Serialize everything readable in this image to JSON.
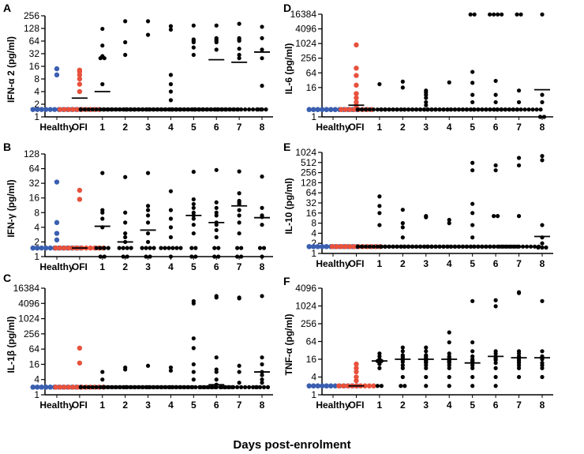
{
  "chart_data": [
    {
      "panel": "A",
      "type": "scatter",
      "title": "",
      "ylabel": "IFN-α 2 (pg/ml)",
      "yscale": "log2",
      "ylim": [
        1,
        256
      ],
      "yticks": [
        1,
        2,
        4,
        8,
        16,
        32,
        64,
        128,
        256
      ],
      "categories": [
        "Healthy",
        "OFI",
        "1",
        "2",
        "3",
        "4",
        "5",
        "6",
        "7",
        "8"
      ],
      "colors": [
        "#3a5fb0",
        "#e8513c",
        "#000000",
        "#000000",
        "#000000",
        "#000000",
        "#000000",
        "#000000",
        "#000000",
        "#000000"
      ],
      "points": [
        [
          1.5,
          1.5,
          1.5,
          1.5,
          1.5,
          1.5,
          1.5,
          1.5,
          1.5,
          1.5,
          1.5,
          1.5,
          1.5,
          1.5,
          1.5,
          10,
          14
        ],
        [
          1.5,
          1.5,
          1.5,
          1.5,
          1.5,
          1.5,
          1.5,
          1.5,
          1.5,
          1.5,
          4,
          6,
          8,
          10,
          12,
          13
        ],
        [
          1.5,
          1.5,
          1.5,
          1.5,
          1.5,
          1.5,
          1.5,
          1.5,
          1.5,
          1.5,
          1.5,
          1.5,
          6,
          25,
          25,
          28,
          50,
          125
        ],
        [
          1.5,
          1.5,
          1.5,
          1.5,
          1.5,
          1.5,
          1.5,
          1.5,
          1.5,
          1.5,
          1.5,
          1.5,
          1.5,
          1.5,
          1.5,
          30,
          60,
          190
        ],
        [
          1.5,
          1.5,
          1.5,
          1.5,
          1.5,
          1.5,
          1.5,
          1.5,
          1.5,
          1.5,
          1.5,
          1.5,
          1.5,
          1.5,
          1.5,
          90,
          190
        ],
        [
          1.5,
          1.5,
          1.5,
          1.5,
          1.5,
          1.5,
          1.5,
          1.5,
          1.5,
          1.5,
          1.5,
          1.5,
          2.5,
          4,
          6,
          10,
          120,
          145
        ],
        [
          1.5,
          1.5,
          1.5,
          1.5,
          1.5,
          1.5,
          1.5,
          1.5,
          1.5,
          1.5,
          1.5,
          1.5,
          1.5,
          1.5,
          1.5,
          30,
          45,
          60,
          65,
          70,
          150
        ],
        [
          1.5,
          1.5,
          1.5,
          1.5,
          1.5,
          1.5,
          1.5,
          1.5,
          1.5,
          1.5,
          1.5,
          1.5,
          1.5,
          1.5,
          1.5,
          40,
          60,
          65,
          70,
          75,
          150
        ],
        [
          1.5,
          1.5,
          1.5,
          1.5,
          1.5,
          1.5,
          1.5,
          1.5,
          1.5,
          1.5,
          1.5,
          1.5,
          1.5,
          1.5,
          1.5,
          25,
          30,
          42,
          65,
          70,
          75,
          165
        ],
        [
          1.5,
          1.5,
          1.5,
          5.5,
          25,
          40,
          75,
          140
        ]
      ],
      "medians": [
        null,
        2.8,
        4.0,
        null,
        null,
        null,
        null,
        23,
        20,
        35
      ]
    },
    {
      "panel": "B",
      "type": "scatter",
      "title": "",
      "ylabel": "IFN-γ (pg/ml)",
      "yscale": "log2",
      "ylim": [
        1,
        128
      ],
      "yticks": [
        1,
        2,
        4,
        8,
        16,
        32,
        64,
        128
      ],
      "categories": [
        "Healthy",
        "OFI",
        "1",
        "2",
        "3",
        "4",
        "5",
        "6",
        "7",
        "8"
      ],
      "colors": [
        "#3a5fb0",
        "#e8513c",
        "#000000",
        "#000000",
        "#000000",
        "#000000",
        "#000000",
        "#000000",
        "#000000",
        "#000000"
      ],
      "points": [
        [
          1.5,
          1.5,
          1.5,
          1.5,
          1.5,
          1.5,
          1.5,
          1.5,
          1.5,
          1.5,
          1.5,
          1.5,
          1.5,
          1.5,
          2.2,
          3,
          5,
          34
        ],
        [
          1.5,
          1.5,
          1.5,
          1.5,
          1.5,
          1.5,
          1.5,
          1.5,
          1.5,
          1.5,
          1.5,
          1.5,
          1.5,
          15,
          23
        ],
        [
          1,
          1,
          1.5,
          1.5,
          1.5,
          1.5,
          4,
          6,
          8,
          9,
          52
        ],
        [
          1,
          1,
          1.5,
          1.5,
          1.5,
          1.5,
          2,
          2.5,
          3,
          5,
          8,
          43
        ],
        [
          1,
          1,
          1.5,
          1.5,
          1.5,
          1.5,
          2,
          3,
          5,
          7,
          9,
          11,
          52
        ],
        [
          1,
          1.5,
          1.5,
          1.5,
          1.5,
          1.5,
          1.5,
          2.5,
          4,
          6,
          9,
          22
        ],
        [
          1,
          1,
          1.5,
          1.5,
          3,
          4.5,
          6,
          7,
          8,
          10,
          12,
          15,
          55
        ],
        [
          1,
          1,
          1.5,
          1.5,
          2.5,
          3.5,
          4.5,
          5,
          7,
          8,
          10,
          13,
          60
        ],
        [
          1,
          1,
          1.5,
          1.5,
          3,
          5,
          7,
          9,
          12,
          13,
          14,
          20,
          56
        ],
        [
          1,
          1.5,
          1.5,
          4.5,
          6.5,
          7,
          10,
          44
        ]
      ],
      "medians": [
        null,
        1.5,
        4.2,
        2.0,
        3.5,
        1.5,
        7.0,
        5.0,
        11,
        6.3
      ]
    },
    {
      "panel": "C",
      "type": "scatter",
      "title": "",
      "ylabel": "IL-1β (pg/ml)",
      "yscale": "log4",
      "ylim": [
        1,
        16384
      ],
      "yticks": [
        1,
        4,
        16,
        64,
        256,
        1024,
        4096,
        16384
      ],
      "categories": [
        "Healthy",
        "OFI",
        "1",
        "2",
        "3",
        "4",
        "5",
        "6",
        "7",
        "8"
      ],
      "colors": [
        "#3a5fb0",
        "#e8513c",
        "#000000",
        "#000000",
        "#000000",
        "#000000",
        "#000000",
        "#000000",
        "#000000",
        "#000000"
      ],
      "points": [
        [
          2,
          2,
          2,
          2,
          2,
          2,
          2,
          2,
          2,
          2,
          2,
          2,
          2,
          2,
          2,
          2,
          2,
          2
        ],
        [
          2,
          2,
          2,
          2,
          2,
          2,
          2,
          2,
          2,
          2,
          2,
          2,
          2,
          18,
          70
        ],
        [
          2,
          2,
          2,
          2,
          2,
          2,
          2,
          2,
          2,
          2,
          2,
          2,
          4,
          8
        ],
        [
          2,
          2,
          2,
          2,
          2,
          2,
          2,
          2,
          2,
          2,
          2,
          2,
          2,
          10,
          12
        ],
        [
          2,
          2,
          2,
          2,
          2,
          2,
          2,
          2,
          2,
          2,
          2,
          2,
          2,
          14
        ],
        [
          2,
          2,
          2,
          2,
          2,
          2,
          2,
          2,
          2,
          2,
          2,
          2,
          9,
          12
        ],
        [
          2,
          2,
          2,
          2,
          2,
          2,
          2,
          2,
          2,
          2,
          2,
          2,
          4,
          8,
          16,
          70,
          170,
          4096,
          5000
        ],
        [
          2,
          2,
          2,
          2,
          2,
          2,
          2,
          2,
          2,
          2.5,
          4,
          8,
          10,
          30,
          7000,
          8000
        ],
        [
          2,
          2,
          2,
          2,
          2,
          2,
          2,
          2,
          2,
          2,
          3,
          8,
          14,
          6500,
          7000
        ],
        [
          2,
          2,
          2,
          2,
          3,
          4,
          6,
          8,
          16,
          30,
          8000
        ]
      ],
      "medians": [
        null,
        null,
        null,
        null,
        null,
        null,
        null,
        2.5,
        null,
        8
      ]
    },
    {
      "panel": "D",
      "type": "scatter",
      "title": "",
      "ylabel": "IL-6 (pg/ml)",
      "yscale": "log4",
      "ylim": [
        1,
        16384
      ],
      "yticks": [
        1,
        16,
        64,
        256,
        1024,
        4096,
        16384
      ],
      "categories": [
        "Healthy",
        "OFI",
        "1",
        "2",
        "3",
        "4",
        "5",
        "6",
        "7",
        "8"
      ],
      "colors": [
        "#3a5fb0",
        "#e8513c",
        "#000000",
        "#000000",
        "#000000",
        "#000000",
        "#000000",
        "#000000",
        "#000000",
        "#000000"
      ],
      "points": [
        [
          2,
          2,
          2,
          2,
          2,
          2,
          2,
          2,
          2,
          2,
          2,
          2,
          2,
          2,
          2,
          2,
          2,
          2,
          2
        ],
        [
          2,
          2,
          2,
          2,
          2,
          2,
          2,
          2,
          3,
          4,
          6,
          9,
          20,
          50,
          100,
          900
        ],
        [
          2,
          2,
          2,
          2,
          2,
          2,
          2,
          2,
          2,
          2,
          2,
          2,
          2,
          2,
          2,
          22
        ],
        [
          2,
          2,
          2,
          2,
          2,
          2,
          2,
          2,
          2,
          2,
          2,
          2,
          2,
          2,
          16,
          28
        ],
        [
          2,
          2,
          2,
          2,
          2,
          2,
          2,
          2,
          2,
          2,
          2,
          2,
          3,
          4,
          6,
          8,
          10,
          12
        ],
        [
          2,
          2,
          2,
          2,
          2,
          2,
          2,
          2,
          2,
          2,
          2,
          2,
          2,
          2,
          2,
          26
        ],
        [
          2,
          2,
          2,
          2,
          2,
          2,
          2,
          2,
          2,
          2,
          2,
          2,
          4,
          8,
          25,
          70,
          16000,
          16000
        ],
        [
          2,
          2,
          2,
          2,
          2,
          2,
          2,
          2,
          2,
          2,
          2,
          2,
          2,
          4,
          8,
          30,
          16000,
          16000,
          16000,
          16000
        ],
        [
          2,
          2,
          2,
          2,
          2,
          2,
          2,
          2,
          2,
          2,
          2,
          2,
          2,
          2,
          4,
          12,
          16000,
          16000
        ],
        [
          1,
          1,
          4,
          8,
          16000
        ]
      ],
      "medians": [
        null,
        3,
        null,
        null,
        null,
        null,
        null,
        null,
        null,
        13
      ]
    },
    {
      "panel": "E",
      "type": "scatter",
      "title": "",
      "ylabel": "IL-10 (pg/ml)",
      "yscale": "log2",
      "ylim": [
        1,
        1024
      ],
      "yticks": [
        1,
        2,
        4,
        8,
        16,
        32,
        64,
        128,
        256,
        512,
        1024
      ],
      "categories": [
        "Healthy",
        "OFI",
        "1",
        "2",
        "3",
        "4",
        "5",
        "6",
        "7",
        "8"
      ],
      "colors": [
        "#3a5fb0",
        "#e8513c",
        "#000000",
        "#000000",
        "#000000",
        "#000000",
        "#000000",
        "#000000",
        "#000000",
        "#000000"
      ],
      "points": [
        [
          1.6,
          1.6,
          1.6,
          1.6,
          1.6,
          1.6,
          1.6,
          1.6,
          1.6,
          1.6,
          1.6,
          1.6,
          1.6,
          1.6,
          1.6,
          1.6,
          1.6
        ],
        [
          1.6,
          1.6,
          1.6,
          1.6,
          1.6,
          1.6,
          1.6,
          1.6,
          1.6,
          1.6,
          1.6,
          1.6,
          1.6,
          1.6,
          1.6,
          1.6
        ],
        [
          1.6,
          1.6,
          1.6,
          1.6,
          1.6,
          1.6,
          1.6,
          1.6,
          1.6,
          1.6,
          1.6,
          1.6,
          1.6,
          1.6,
          7,
          16,
          26,
          50
        ],
        [
          1.6,
          1.6,
          1.6,
          1.6,
          1.6,
          1.6,
          1.6,
          1.6,
          1.6,
          1.6,
          1.6,
          1.6,
          1.6,
          1.6,
          3,
          6,
          8,
          20
        ],
        [
          1.6,
          1.6,
          1.6,
          1.6,
          1.6,
          1.6,
          1.6,
          1.6,
          1.6,
          1.6,
          1.6,
          1.6,
          1.6,
          1.6,
          12,
          13
        ],
        [
          1.6,
          1.6,
          1.6,
          1.6,
          1.6,
          1.6,
          1.6,
          1.6,
          1.6,
          1.6,
          1.6,
          1.6,
          1.6,
          1.6,
          8,
          10
        ],
        [
          1.6,
          1.6,
          1.6,
          1.6,
          1.6,
          1.6,
          1.6,
          1.6,
          1.6,
          1.6,
          1.6,
          1.6,
          3,
          7,
          16,
          30,
          300,
          500
        ],
        [
          1.6,
          1.6,
          1.6,
          1.6,
          1.6,
          1.6,
          1.6,
          1.6,
          1.6,
          1.6,
          1.6,
          1.6,
          13,
          13,
          300,
          420
        ],
        [
          1.6,
          1.6,
          1.6,
          1.6,
          1.6,
          1.6,
          1.6,
          1.6,
          1.6,
          1.6,
          1.6,
          13,
          420,
          700
        ],
        [
          1.5,
          1.5,
          1.5,
          2,
          3,
          7,
          600,
          800
        ]
      ],
      "medians": [
        null,
        null,
        null,
        null,
        null,
        null,
        null,
        null,
        1.6,
        3.2
      ]
    },
    {
      "panel": "F",
      "type": "scatter",
      "title": "",
      "ylabel": "TNF-α (pg/ml)",
      "yscale": "log4",
      "ylim": [
        1,
        4096
      ],
      "yticks": [
        1,
        4,
        16,
        64,
        256,
        1024,
        4096
      ],
      "categories": [
        "Healthy",
        "OFI",
        "1",
        "2",
        "3",
        "4",
        "5",
        "6",
        "7",
        "8"
      ],
      "colors": [
        "#3a5fb0",
        "#e8513c",
        "#000000",
        "#000000",
        "#000000",
        "#000000",
        "#000000",
        "#000000",
        "#000000",
        "#000000"
      ],
      "points": [
        [
          2,
          2,
          2,
          2,
          2,
          2,
          2,
          2,
          2,
          2,
          2,
          2,
          2,
          2,
          2,
          2,
          2,
          2
        ],
        [
          2,
          2,
          2,
          2,
          2,
          2,
          2,
          2,
          2,
          3,
          4,
          6,
          8,
          11
        ],
        [
          2,
          2,
          8,
          11,
          12,
          13,
          14,
          14,
          15,
          16,
          20,
          25
        ],
        [
          2,
          2,
          4,
          8,
          10,
          13,
          15,
          16,
          18,
          20,
          22,
          30,
          40
        ],
        [
          2,
          4,
          8,
          10,
          12,
          13,
          14,
          15,
          16,
          18,
          20,
          22,
          30,
          40
        ],
        [
          2,
          4,
          8,
          10,
          12,
          13,
          14,
          15,
          16,
          18,
          20,
          25,
          60,
          130
        ],
        [
          2,
          4,
          8,
          10,
          12,
          13,
          14,
          15,
          16,
          20,
          30,
          60,
          1500
        ],
        [
          2,
          4,
          8,
          12,
          15,
          16,
          18,
          20,
          25,
          30,
          1000,
          1600
        ],
        [
          4,
          8,
          10,
          12,
          14,
          16,
          18,
          20,
          25,
          30,
          2800,
          3000
        ],
        [
          4,
          8,
          10,
          12,
          16,
          18,
          20,
          30,
          1500
        ]
      ],
      "medians": [
        null,
        2,
        14,
        16,
        16,
        16,
        12,
        20,
        18,
        18
      ]
    }
  ],
  "layout_labels": {
    "x_title": "Days post-enrolment"
  }
}
